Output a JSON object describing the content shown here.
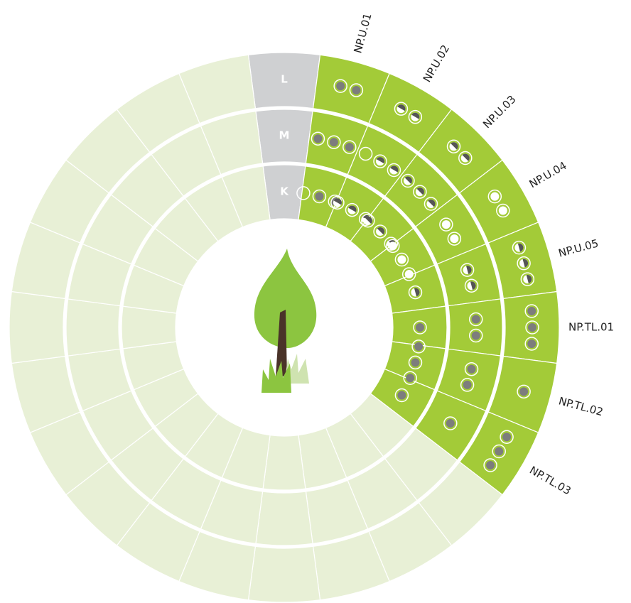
{
  "rings": [
    "K",
    "M",
    "L"
  ],
  "segments": [
    "NP.U.01",
    "NP.U.02",
    "NP.U.03",
    "NP.U.04",
    "NP.U.05",
    "NP.TL.01",
    "NP.TL.02",
    "NP.TL.03"
  ]
}
